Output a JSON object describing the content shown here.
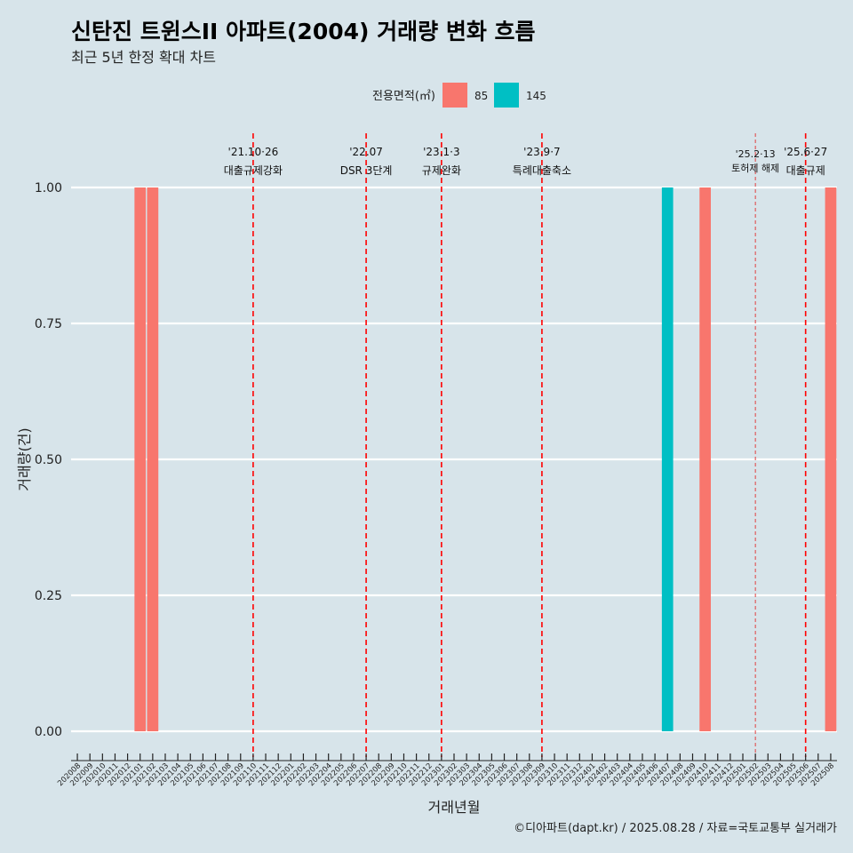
{
  "chart_data": {
    "type": "bar",
    "title": "신탄진 트윈스II 아파트(2004) 거래량 변화 흐름",
    "subtitle": "최근 5년 한정 확대 차트",
    "xlabel": "거래년월",
    "ylabel": "거래량(건)",
    "caption": "©디아파트(dapt.kr) / 2025.08.28 / 자료=국토교통부 실거래가",
    "legend": {
      "title": "전용면적(㎡)",
      "position": "top",
      "items": [
        {
          "name": "85",
          "color": "#f8766d"
        },
        {
          "name": "145",
          "color": "#00bfc4"
        }
      ]
    },
    "ylim": [
      0,
      1
    ],
    "yticks": [
      "0.00",
      "0.25",
      "0.50",
      "0.75",
      "1.00"
    ],
    "yticks_values": [
      0,
      0.25,
      0.5,
      0.75,
      1
    ],
    "grid": true,
    "categories": [
      "202008",
      "202009",
      "202010",
      "202011",
      "202012",
      "202101",
      "202102",
      "202103",
      "202104",
      "202105",
      "202106",
      "202107",
      "202108",
      "202109",
      "202110",
      "202111",
      "202112",
      "202201",
      "202202",
      "202203",
      "202204",
      "202205",
      "202206",
      "202207",
      "202208",
      "202209",
      "202210",
      "202211",
      "202212",
      "202301",
      "202302",
      "202303",
      "202304",
      "202305",
      "202306",
      "202307",
      "202308",
      "202309",
      "202310",
      "202311",
      "202312",
      "202401",
      "202402",
      "202403",
      "202404",
      "202405",
      "202406",
      "202407",
      "202408",
      "202409",
      "202410",
      "202411",
      "202412",
      "202501",
      "202502",
      "202503",
      "202504",
      "202505",
      "202506",
      "202507",
      "202508"
    ],
    "series": [
      {
        "name": "85",
        "color": "#f8766d",
        "values": [
          {
            "x": "202101",
            "y": 1
          },
          {
            "x": "202102",
            "y": 1
          },
          {
            "x": "202410",
            "y": 1
          },
          {
            "x": "202508",
            "y": 1
          }
        ]
      },
      {
        "name": "145",
        "color": "#00bfc4",
        "values": [
          {
            "x": "202407",
            "y": 1
          }
        ]
      }
    ],
    "annotations": [
      {
        "x": "202110",
        "date": "'21.10·26",
        "text": "대출규제강화",
        "style": "dashed"
      },
      {
        "x": "202207",
        "date": "'22.07",
        "text": "DSR 3단계",
        "style": "dashed"
      },
      {
        "x": "202301",
        "date": "'23.1·3",
        "text": "규제완화",
        "style": "dashed"
      },
      {
        "x": "202309",
        "date": "'23.9·7",
        "text": "특례대출축소",
        "style": "dashed"
      },
      {
        "x": "202502",
        "date": "'25.2·13",
        "text": "토허제 해제",
        "style": "dashed-thin",
        "small": true
      },
      {
        "x": "202506",
        "date": "'25.6·27",
        "text": "대출규제",
        "style": "dashed"
      }
    ]
  }
}
